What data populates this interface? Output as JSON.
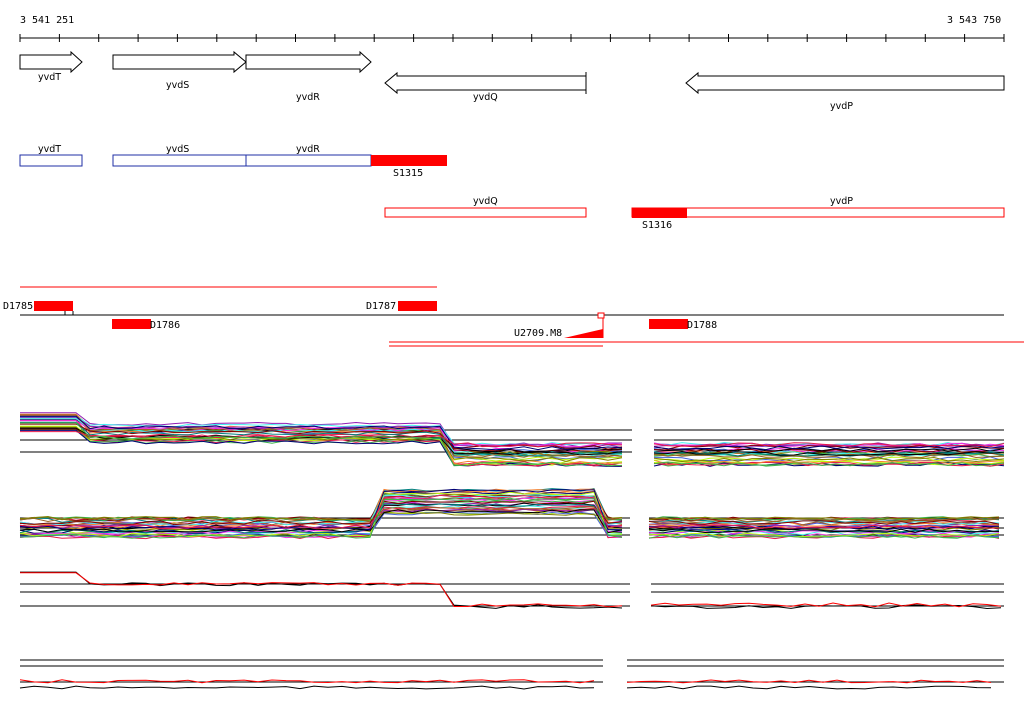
{
  "ruler": {
    "start_label": "3 541 251",
    "end_label": "3 543 750",
    "start": 3541251,
    "end": 3543750
  },
  "colors": {
    "gene_outline": "#000000",
    "operon_blue": "#1f2fa6",
    "operon_red": "#ff0000",
    "segment_red": "#ff0000"
  },
  "genes": [
    {
      "name": "yvdT",
      "strand": "+"
    },
    {
      "name": "yvdS",
      "strand": "+"
    },
    {
      "name": "yvdR",
      "strand": "+"
    },
    {
      "name": "yvdQ",
      "strand": "-"
    },
    {
      "name": "yvdP",
      "strand": "-"
    }
  ],
  "transcription_units": [
    {
      "label": "yvdT",
      "color": "blue"
    },
    {
      "label": "yvdS",
      "color": "blue"
    },
    {
      "label": "yvdR",
      "color": "blue"
    },
    {
      "label": "S1315",
      "color": "red-filled"
    },
    {
      "label": "yvdQ",
      "color": "red"
    },
    {
      "label": "yvdP",
      "color": "red"
    },
    {
      "label": "S1316",
      "color": "red-filled"
    }
  ],
  "segments": [
    {
      "label": "D1785"
    },
    {
      "label": "D1786"
    },
    {
      "label": "D1787"
    },
    {
      "label": "U2709.M8"
    },
    {
      "label": "D1788"
    }
  ],
  "expression_panels": [
    {
      "name": "panel-1",
      "series_colors": [
        "#e6194b",
        "#3cb44b",
        "#4363d8",
        "#f58231",
        "#911eb4",
        "#46f0f0",
        "#f032e6",
        "#bcf60c",
        "#008080",
        "#9a6324",
        "#800000",
        "#808000",
        "#000075",
        "#000000"
      ]
    },
    {
      "name": "panel-2",
      "series_colors": [
        "#e6194b",
        "#3cb44b",
        "#4363d8",
        "#f58231",
        "#911eb4",
        "#46f0f0",
        "#f032e6",
        "#bcf60c",
        "#008080",
        "#9a6324",
        "#800000",
        "#808000",
        "#000075",
        "#000000"
      ]
    },
    {
      "name": "panel-3",
      "series_colors": [
        "#000000",
        "#ff0000"
      ]
    },
    {
      "name": "panel-4",
      "series_colors": [
        "#000000",
        "#ff0000"
      ]
    }
  ]
}
